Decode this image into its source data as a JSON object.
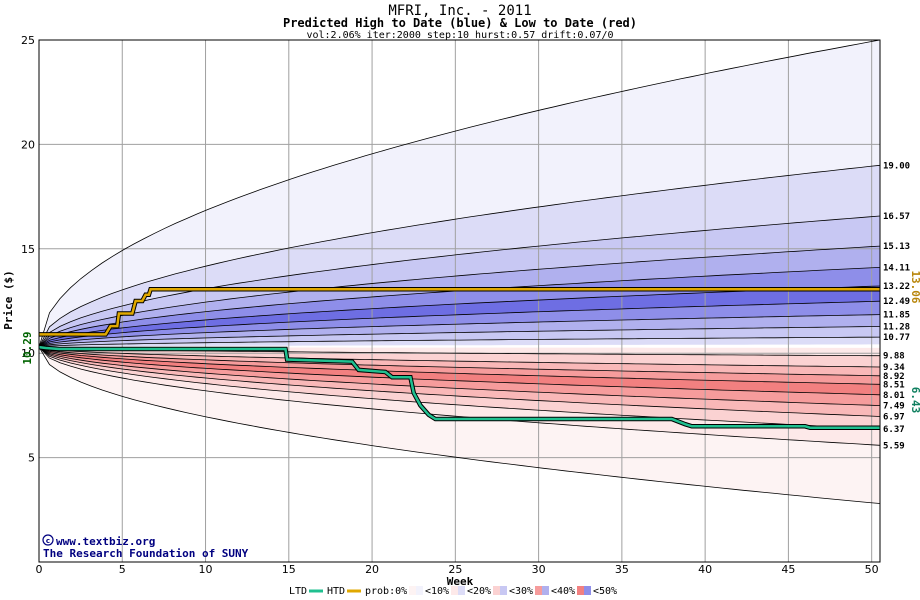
{
  "chart_data": {
    "type": "area",
    "title": "MFRI, Inc. - 2011",
    "subtitle": "Predicted High to Date (blue) &  Low to Date (red)",
    "params": "vol:2.06% iter:2000 step:10 hurst:0.57 drift:0.07/0",
    "xlabel": "Week",
    "ylabel": "Price ($)",
    "xlim": [
      0,
      50.5
    ],
    "ylim": [
      0,
      25
    ],
    "x_ticks": [
      0,
      5,
      10,
      15,
      20,
      25,
      30,
      35,
      40,
      45,
      50
    ],
    "y_ticks": [
      5,
      10,
      15,
      20,
      25
    ],
    "start_price": 10.29,
    "start_price_label": "10.29",
    "final_high": 13.06,
    "final_high_label": "13.06",
    "final_low": 6.43,
    "final_low_label": "6.43",
    "right_labels": [
      "19.00",
      "16.57",
      "15.13",
      "14.11",
      "13.22",
      "12.49",
      "11.85",
      "11.28",
      "10.77",
      "9.88",
      "9.34",
      "8.92",
      "8.51",
      "8.01",
      "7.49",
      "6.97",
      "6.37",
      "5.59"
    ],
    "high_bands": [
      {
        "level": 0,
        "end": 25.0,
        "color": "#f2f2fc"
      },
      {
        "level": 10,
        "end": 19.0,
        "color": "#dcdcf7"
      },
      {
        "level": 20,
        "end": 16.57,
        "color": "#c8c8f3"
      },
      {
        "level": 30,
        "end": 15.13,
        "color": "#b0b0ee"
      },
      {
        "level": 40,
        "end": 14.11,
        "color": "#8e8ee9"
      },
      {
        "level": 50,
        "end": 13.22,
        "color": "#6e6ee3"
      },
      {
        "level": 40,
        "end": 12.49,
        "color": "#8e8ee9"
      },
      {
        "level": 30,
        "end": 11.85,
        "color": "#b0b0ee"
      },
      {
        "level": 20,
        "end": 11.28,
        "color": "#c8c8f3"
      },
      {
        "level": 10,
        "end": 10.77,
        "color": "#dcdcf7"
      }
    ],
    "low_bands": [
      {
        "level": 10,
        "end": 9.88,
        "color": "#fde9e9"
      },
      {
        "level": 20,
        "end": 9.34,
        "color": "#fbd2d2"
      },
      {
        "level": 30,
        "end": 8.92,
        "color": "#f9b8b8"
      },
      {
        "level": 40,
        "end": 8.51,
        "color": "#f69c9c"
      },
      {
        "level": 50,
        "end": 8.01,
        "color": "#f28080"
      },
      {
        "level": 40,
        "end": 7.49,
        "color": "#f69c9c"
      },
      {
        "level": 30,
        "end": 6.97,
        "color": "#f9b8b8"
      },
      {
        "level": 20,
        "end": 6.37,
        "color": "#fbd2d2"
      },
      {
        "level": 10,
        "end": 5.59,
        "color": "#fde9e9"
      },
      {
        "level": 0,
        "end": 2.8,
        "color": "#fdf3f3"
      }
    ],
    "htd_series": {
      "name": "HTD",
      "color": "#e0a800",
      "points": [
        [
          0,
          10.9
        ],
        [
          4,
          10.9
        ],
        [
          4.3,
          11.3
        ],
        [
          4.7,
          11.3
        ],
        [
          4.8,
          11.9
        ],
        [
          5.6,
          11.9
        ],
        [
          5.8,
          12.5
        ],
        [
          6.2,
          12.5
        ],
        [
          6.4,
          12.8
        ],
        [
          6.6,
          12.8
        ],
        [
          6.7,
          13.06
        ],
        [
          50.5,
          13.06
        ]
      ]
    },
    "ltd_series": {
      "name": "LTD",
      "color": "#20c090",
      "points": [
        [
          0,
          10.29
        ],
        [
          0.4,
          10.25
        ],
        [
          1.2,
          10.2
        ],
        [
          14.8,
          10.2
        ],
        [
          14.9,
          9.7
        ],
        [
          18.8,
          9.6
        ],
        [
          19.2,
          9.2
        ],
        [
          20.8,
          9.1
        ],
        [
          21.2,
          8.85
        ],
        [
          22.3,
          8.85
        ],
        [
          22.5,
          8.1
        ],
        [
          22.9,
          7.5
        ],
        [
          23.4,
          7.05
        ],
        [
          23.8,
          6.85
        ],
        [
          38.0,
          6.85
        ],
        [
          38.8,
          6.6
        ],
        [
          39.2,
          6.5
        ],
        [
          46.0,
          6.5
        ],
        [
          46.3,
          6.43
        ],
        [
          50.5,
          6.43
        ]
      ]
    },
    "credit_line1": "www.textbiz.org",
    "credit_line2": "The Research Foundation of SUNY",
    "legend": {
      "ltd_label": "LTD",
      "htd_label": "HTD",
      "prob_label": "prob:0%",
      "ranges": [
        "<10%",
        "<20%",
        "<30%",
        "<40%",
        "<50%"
      ],
      "range_colors_blue": [
        "#f2f2fc",
        "#dcdcf7",
        "#c8c8f3",
        "#b0b0ee",
        "#8e8ee9"
      ],
      "range_colors_red": [
        "#fdf3f3",
        "#fde9e9",
        "#fbd2d2",
        "#f69c9c",
        "#f28080"
      ]
    }
  }
}
